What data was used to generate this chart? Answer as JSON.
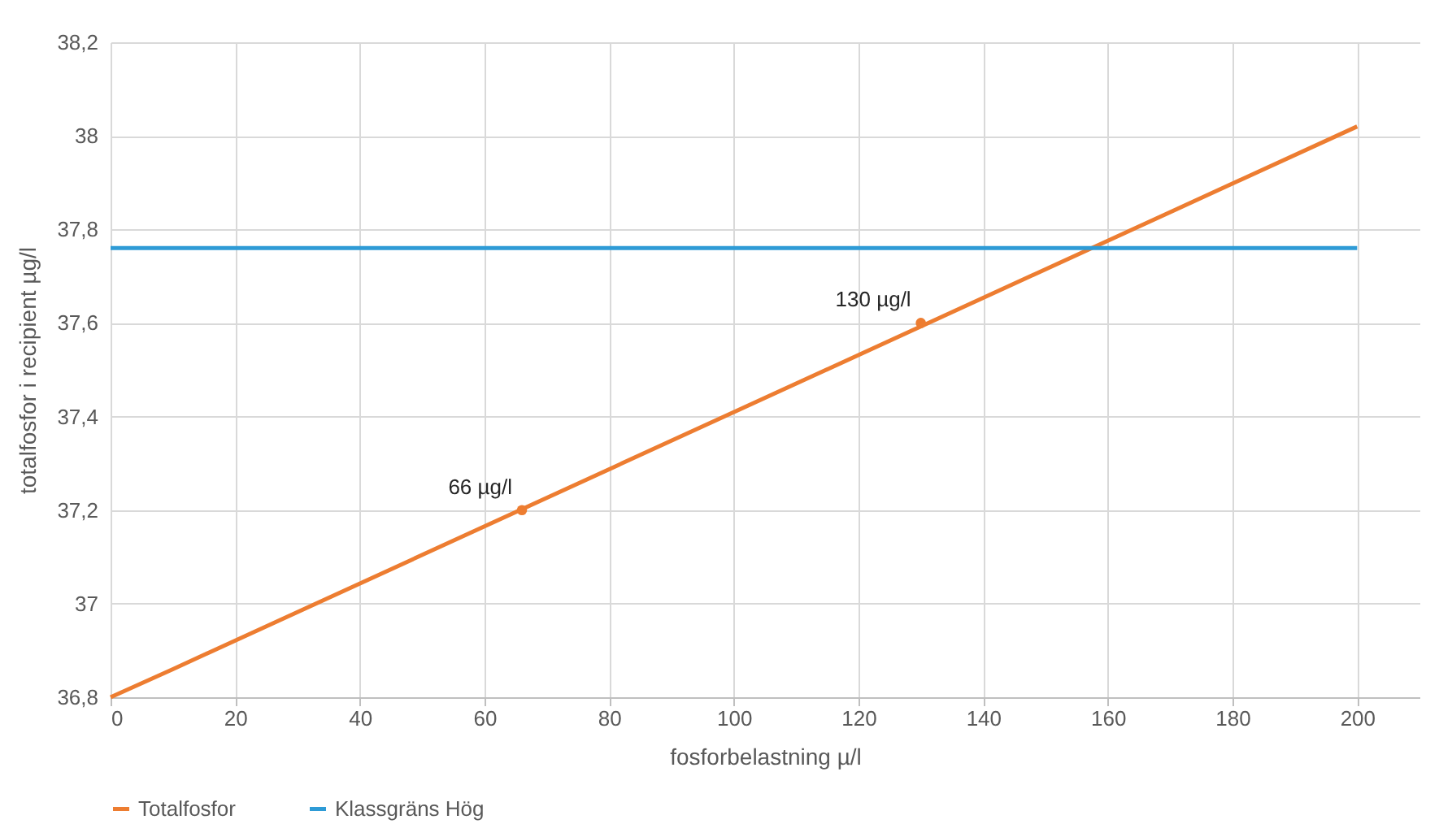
{
  "chart_data": {
    "type": "line",
    "xlabel": "fosforbelastning µ/l",
    "ylabel": "totalfosfor i recipient µg/l",
    "xlim": [
      0,
      210
    ],
    "xticks": [
      0,
      20,
      40,
      60,
      80,
      100,
      120,
      140,
      160,
      180,
      200
    ],
    "ylim": [
      36.8,
      38.2
    ],
    "yticks": [
      {
        "value": 36.8,
        "label": "36,8"
      },
      {
        "value": 37,
        "label": "37"
      },
      {
        "value": 37.2,
        "label": "37,2"
      },
      {
        "value": 37.4,
        "label": "37,4"
      },
      {
        "value": 37.6,
        "label": "37,6"
      },
      {
        "value": 37.8,
        "label": "37,8"
      },
      {
        "value": 38,
        "label": "38"
      },
      {
        "value": 38.2,
        "label": "38,2"
      }
    ],
    "grid": true,
    "legend": "bottom",
    "marker": "none",
    "line_style": "solid",
    "series": [
      {
        "name": "Totalfosfor",
        "color": "#ed7d31",
        "x": [
          0,
          10,
          200
        ],
        "values": [
          36.8,
          36.86,
          38.02
        ]
      },
      {
        "name": "Klassgräns Hög",
        "color": "#2e9bd6",
        "x": [
          0,
          200
        ],
        "values": [
          37.76,
          37.76
        ]
      },
      {
        "type": "scatter",
        "marker": "circle",
        "color": "#ed7d31",
        "x": [
          66,
          130
        ],
        "values": [
          37.2,
          37.6
        ]
      }
    ],
    "annotations": [
      {
        "text": "66 µg/l",
        "x": 66,
        "y": 37.2
      },
      {
        "text": "130 µg/l",
        "x": 130,
        "y": 37.6
      }
    ]
  }
}
